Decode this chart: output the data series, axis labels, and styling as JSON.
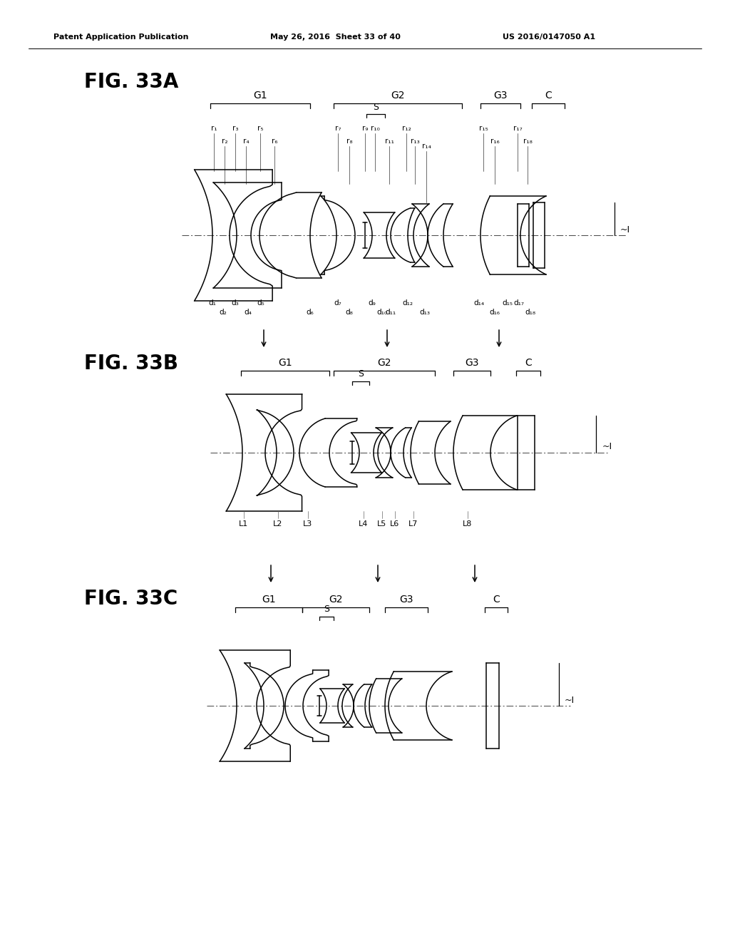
{
  "header_left": "Patent Application Publication",
  "header_mid": "May 26, 2016  Sheet 33 of 40",
  "header_right": "US 2016/0147050 A1",
  "background_color": "#ffffff"
}
